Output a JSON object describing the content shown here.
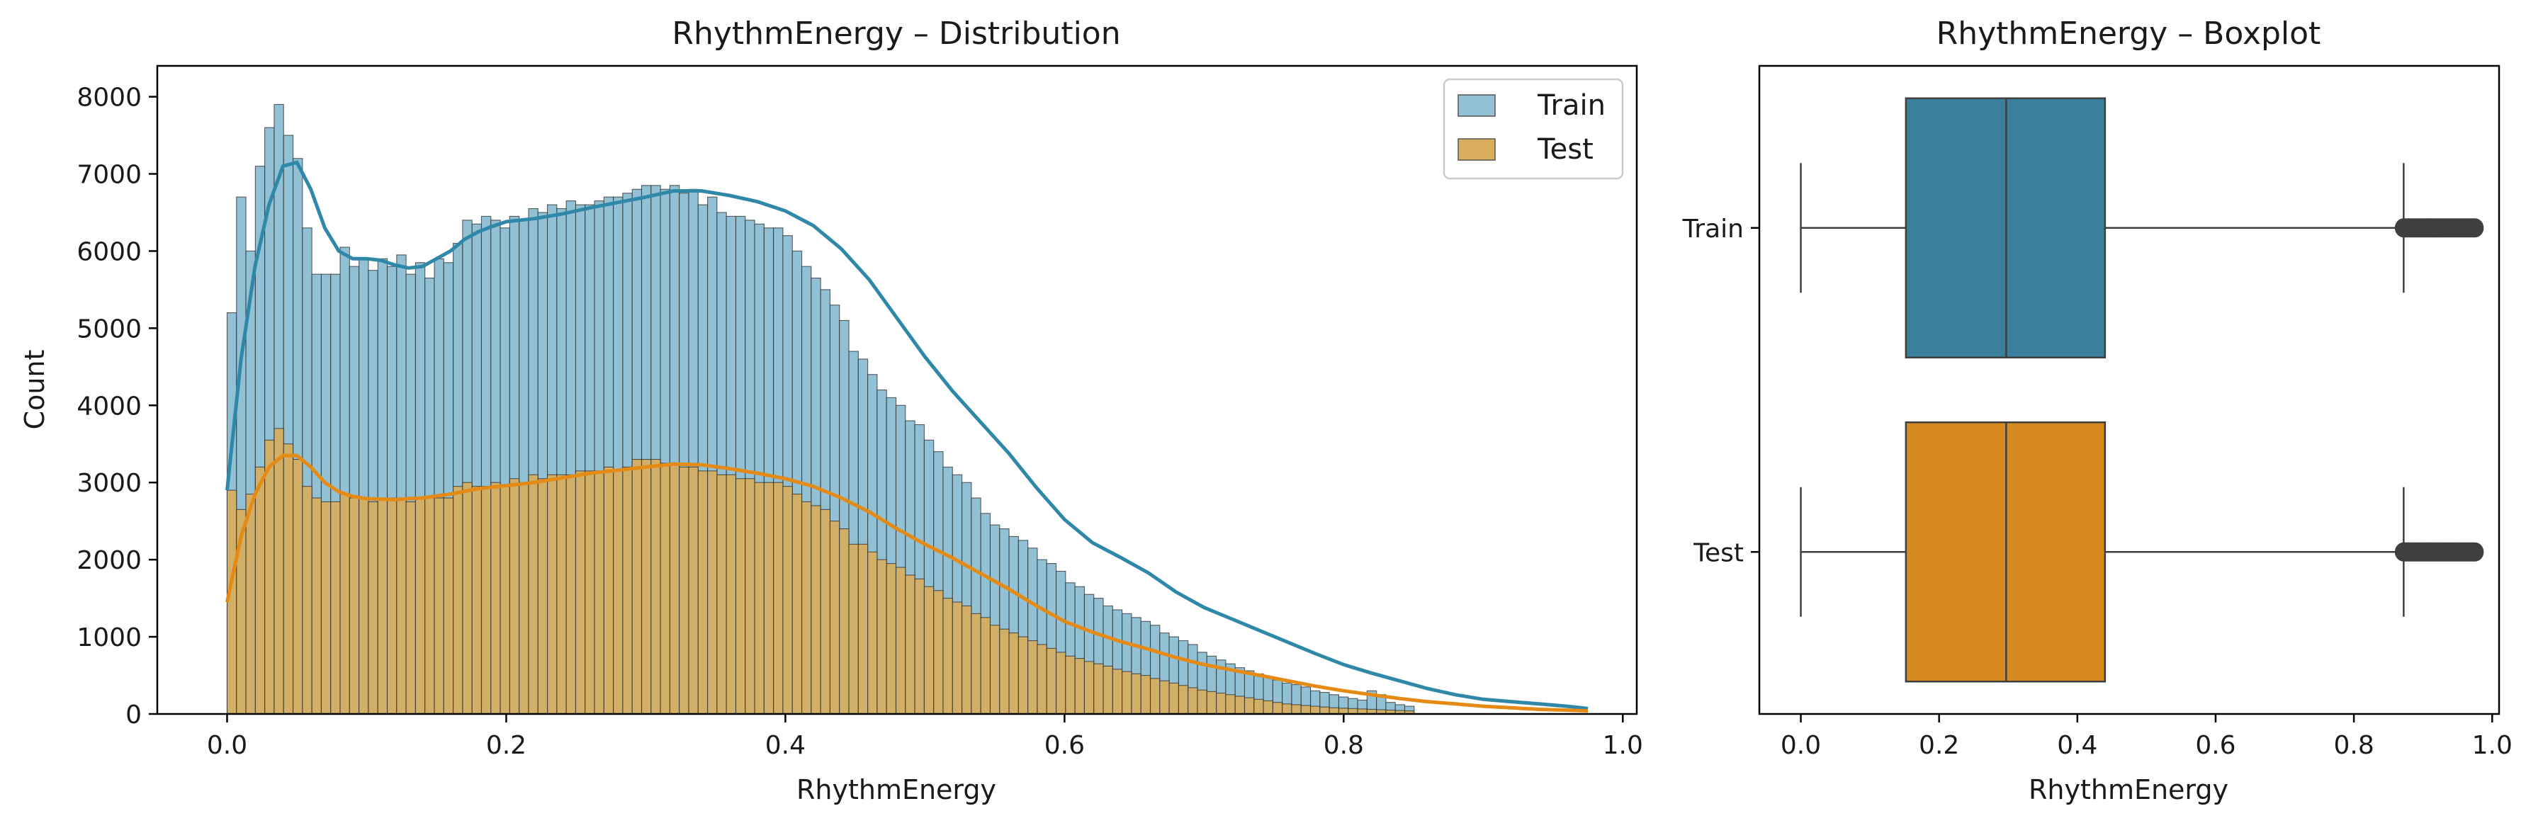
{
  "chart_data": [
    {
      "type": "histogram",
      "title": "RhythmEnergy – Distribution",
      "xlabel": "RhythmEnergy",
      "ylabel": "Count",
      "xlim": [
        -0.05,
        1.01
      ],
      "ylim": [
        0,
        8400
      ],
      "xticks": [
        0.0,
        0.2,
        0.4,
        0.6,
        0.8,
        1.0
      ],
      "xtick_labels": [
        "0.0",
        "0.2",
        "0.4",
        "0.6",
        "0.8",
        "1.0"
      ],
      "yticks": [
        0,
        1000,
        2000,
        3000,
        4000,
        5000,
        6000,
        7000,
        8000
      ],
      "ytick_labels": [
        "0",
        "1000",
        "2000",
        "3000",
        "4000",
        "5000",
        "6000",
        "7000",
        "8000"
      ],
      "legend": {
        "placement": "upper right",
        "entries": [
          "Train",
          "Test"
        ]
      },
      "grid": false,
      "bin_width": 0.00675,
      "series": [
        {
          "name": "Train",
          "color": "#92c1d5",
          "kde_color": "#2f88a8",
          "bin_start": 0.0,
          "values": [
            5200,
            6700,
            6000,
            7100,
            7600,
            7900,
            7500,
            7200,
            6300,
            5700,
            5700,
            5700,
            6050,
            5800,
            5900,
            5750,
            5900,
            5800,
            5950,
            5700,
            5850,
            5650,
            5900,
            5850,
            6100,
            6400,
            6350,
            6450,
            6400,
            6300,
            6450,
            6400,
            6550,
            6500,
            6600,
            6550,
            6650,
            6600,
            6600,
            6650,
            6700,
            6700,
            6750,
            6800,
            6850,
            6850,
            6800,
            6850,
            6750,
            6800,
            6600,
            6700,
            6500,
            6450,
            6450,
            6400,
            6350,
            6300,
            6300,
            6200,
            6000,
            5800,
            5650,
            5500,
            5300,
            5100,
            4700,
            4600,
            4400,
            4200,
            4100,
            4000,
            3800,
            3750,
            3550,
            3400,
            3200,
            3100,
            3000,
            2800,
            2600,
            2450,
            2400,
            2300,
            2250,
            2150,
            2000,
            1950,
            1850,
            1700,
            1650,
            1550,
            1500,
            1400,
            1350,
            1300,
            1250,
            1200,
            1150,
            1050,
            1000,
            950,
            900,
            800,
            750,
            700,
            650,
            600,
            560,
            520,
            480,
            440,
            400,
            380,
            350,
            300,
            280,
            250,
            220,
            200,
            180,
            300,
            250,
            150,
            120,
            100
          ],
          "kde": [
            [
              0.0,
              2900
            ],
            [
              0.01,
              4600
            ],
            [
              0.02,
              5800
            ],
            [
              0.03,
              6600
            ],
            [
              0.04,
              7100
            ],
            [
              0.05,
              7150
            ],
            [
              0.06,
              6800
            ],
            [
              0.07,
              6300
            ],
            [
              0.08,
              6000
            ],
            [
              0.09,
              5900
            ],
            [
              0.1,
              5900
            ],
            [
              0.11,
              5880
            ],
            [
              0.12,
              5820
            ],
            [
              0.13,
              5780
            ],
            [
              0.14,
              5800
            ],
            [
              0.15,
              5900
            ],
            [
              0.16,
              6000
            ],
            [
              0.17,
              6150
            ],
            [
              0.18,
              6250
            ],
            [
              0.19,
              6320
            ],
            [
              0.2,
              6380
            ],
            [
              0.22,
              6420
            ],
            [
              0.24,
              6480
            ],
            [
              0.26,
              6560
            ],
            [
              0.28,
              6630
            ],
            [
              0.3,
              6700
            ],
            [
              0.32,
              6780
            ],
            [
              0.34,
              6780
            ],
            [
              0.36,
              6720
            ],
            [
              0.38,
              6640
            ],
            [
              0.4,
              6520
            ],
            [
              0.42,
              6330
            ],
            [
              0.44,
              6030
            ],
            [
              0.46,
              5630
            ],
            [
              0.48,
              5130
            ],
            [
              0.5,
              4630
            ],
            [
              0.52,
              4180
            ],
            [
              0.54,
              3780
            ],
            [
              0.56,
              3380
            ],
            [
              0.58,
              2930
            ],
            [
              0.6,
              2520
            ],
            [
              0.62,
              2220
            ],
            [
              0.64,
              2030
            ],
            [
              0.66,
              1830
            ],
            [
              0.68,
              1580
            ],
            [
              0.7,
              1380
            ],
            [
              0.72,
              1230
            ],
            [
              0.74,
              1080
            ],
            [
              0.76,
              930
            ],
            [
              0.78,
              780
            ],
            [
              0.8,
              640
            ],
            [
              0.82,
              530
            ],
            [
              0.84,
              430
            ],
            [
              0.86,
              330
            ],
            [
              0.88,
              250
            ],
            [
              0.9,
              190
            ],
            [
              0.92,
              160
            ],
            [
              0.94,
              130
            ],
            [
              0.96,
              100
            ],
            [
              0.975,
              70
            ]
          ]
        },
        {
          "name": "Test",
          "color": "#d8ae5c",
          "kde_color": "#e48a15",
          "bin_start": 0.0,
          "values": [
            2900,
            2650,
            2850,
            3200,
            3550,
            3700,
            3500,
            3300,
            2950,
            2800,
            2750,
            2750,
            2850,
            2800,
            2800,
            2750,
            2800,
            2800,
            2800,
            2750,
            2800,
            2800,
            2800,
            2800,
            2950,
            3000,
            2950,
            2950,
            3000,
            2950,
            3050,
            3000,
            3100,
            3050,
            3100,
            3100,
            3100,
            3150,
            3150,
            3150,
            3200,
            3150,
            3200,
            3300,
            3300,
            3300,
            3250,
            3250,
            3200,
            3200,
            3150,
            3150,
            3100,
            3100,
            3050,
            3050,
            3000,
            3000,
            3000,
            2950,
            2850,
            2750,
            2700,
            2650,
            2500,
            2400,
            2200,
            2200,
            2100,
            2000,
            1950,
            1900,
            1800,
            1750,
            1650,
            1600,
            1500,
            1450,
            1400,
            1300,
            1250,
            1150,
            1100,
            1050,
            1000,
            950,
            900,
            850,
            800,
            750,
            720,
            680,
            650,
            620,
            580,
            550,
            520,
            500,
            460,
            430,
            400,
            370,
            340,
            310,
            290,
            270,
            250,
            230,
            210,
            190,
            170,
            150,
            130,
            120,
            110,
            100,
            90,
            80,
            75,
            70,
            65,
            60,
            55,
            50,
            45,
            40
          ],
          "kde": [
            [
              0.0,
              1450
            ],
            [
              0.01,
              2300
            ],
            [
              0.02,
              2850
            ],
            [
              0.03,
              3200
            ],
            [
              0.04,
              3350
            ],
            [
              0.05,
              3350
            ],
            [
              0.06,
              3200
            ],
            [
              0.07,
              3000
            ],
            [
              0.08,
              2880
            ],
            [
              0.09,
              2820
            ],
            [
              0.1,
              2790
            ],
            [
              0.12,
              2780
            ],
            [
              0.14,
              2800
            ],
            [
              0.16,
              2850
            ],
            [
              0.18,
              2920
            ],
            [
              0.2,
              2960
            ],
            [
              0.22,
              3000
            ],
            [
              0.24,
              3060
            ],
            [
              0.26,
              3120
            ],
            [
              0.28,
              3160
            ],
            [
              0.3,
              3200
            ],
            [
              0.32,
              3240
            ],
            [
              0.34,
              3230
            ],
            [
              0.36,
              3180
            ],
            [
              0.38,
              3120
            ],
            [
              0.4,
              3050
            ],
            [
              0.42,
              2950
            ],
            [
              0.44,
              2800
            ],
            [
              0.46,
              2620
            ],
            [
              0.48,
              2400
            ],
            [
              0.5,
              2200
            ],
            [
              0.52,
              2020
            ],
            [
              0.54,
              1820
            ],
            [
              0.56,
              1620
            ],
            [
              0.58,
              1400
            ],
            [
              0.6,
              1200
            ],
            [
              0.62,
              1060
            ],
            [
              0.64,
              940
            ],
            [
              0.66,
              840
            ],
            [
              0.68,
              730
            ],
            [
              0.7,
              640
            ],
            [
              0.72,
              570
            ],
            [
              0.74,
              500
            ],
            [
              0.76,
              430
            ],
            [
              0.78,
              360
            ],
            [
              0.8,
              300
            ],
            [
              0.82,
              250
            ],
            [
              0.84,
              200
            ],
            [
              0.86,
              160
            ],
            [
              0.88,
              130
            ],
            [
              0.9,
              100
            ],
            [
              0.92,
              80
            ],
            [
              0.94,
              60
            ],
            [
              0.96,
              50
            ],
            [
              0.975,
              40
            ]
          ]
        }
      ]
    },
    {
      "type": "boxplot",
      "title": "RhythmEnergy – Boxplot",
      "xlabel": "RhythmEnergy",
      "ylabel": "",
      "xlim": [
        -0.06,
        1.01
      ],
      "xticks": [
        0.0,
        0.2,
        0.4,
        0.6,
        0.8,
        1.0
      ],
      "xtick_labels": [
        "0.0",
        "0.2",
        "0.4",
        "0.6",
        "0.8",
        "1.0"
      ],
      "categories": [
        "Train",
        "Test"
      ],
      "grid": false,
      "series": [
        {
          "name": "Train",
          "color": "#3a7f9b",
          "whisker_low": 0.0,
          "q1": 0.152,
          "median": 0.297,
          "q3": 0.44,
          "whisker_high": 0.872,
          "outliers_range": [
            0.872,
            0.975
          ]
        },
        {
          "name": "Test",
          "color": "#d48a1f",
          "whisker_low": 0.0,
          "q1": 0.152,
          "median": 0.297,
          "q3": 0.44,
          "whisker_high": 0.872,
          "outliers_range": [
            0.872,
            0.975
          ]
        }
      ]
    }
  ]
}
